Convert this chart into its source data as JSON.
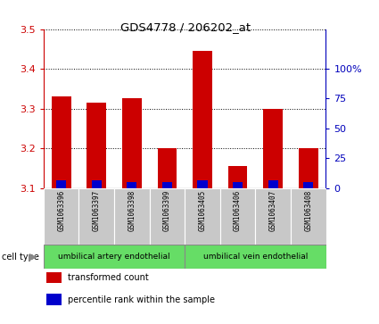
{
  "title": "GDS4778 / 206202_at",
  "samples": [
    "GSM1063396",
    "GSM1063397",
    "GSM1063398",
    "GSM1063399",
    "GSM1063405",
    "GSM1063406",
    "GSM1063407",
    "GSM1063408"
  ],
  "red_values": [
    3.33,
    3.315,
    3.325,
    3.2,
    3.445,
    3.155,
    3.3,
    3.2
  ],
  "blue_values": [
    3.12,
    3.12,
    3.115,
    3.115,
    3.12,
    3.115,
    3.12,
    3.115
  ],
  "baseline": 3.1,
  "ylim_left": [
    3.1,
    3.5
  ],
  "yticks_left": [
    3.1,
    3.2,
    3.3,
    3.4,
    3.5
  ],
  "yticks_right": [
    0,
    25,
    50,
    75,
    100
  ],
  "ylim_right": [
    0,
    133.33
  ],
  "cell_types": [
    {
      "label": "umbilical artery endothelial",
      "start": 0,
      "end": 4,
      "color": "#66DD66"
    },
    {
      "label": "umbilical vein endothelial",
      "start": 4,
      "end": 8,
      "color": "#66DD66"
    }
  ],
  "legend_items": [
    {
      "color": "#CC0000",
      "label": "transformed count"
    },
    {
      "color": "#0000CC",
      "label": "percentile rank within the sample"
    }
  ],
  "bar_width": 0.55,
  "blue_bar_width": 0.28,
  "red_color": "#CC0000",
  "blue_color": "#0000CC",
  "cell_type_label": "cell type",
  "tick_color_left": "#CC0000",
  "tick_color_right": "#0000BB",
  "grid_color": "#000000",
  "sample_box_color": "#C8C8C8",
  "cell_type_border_color": "#888888"
}
